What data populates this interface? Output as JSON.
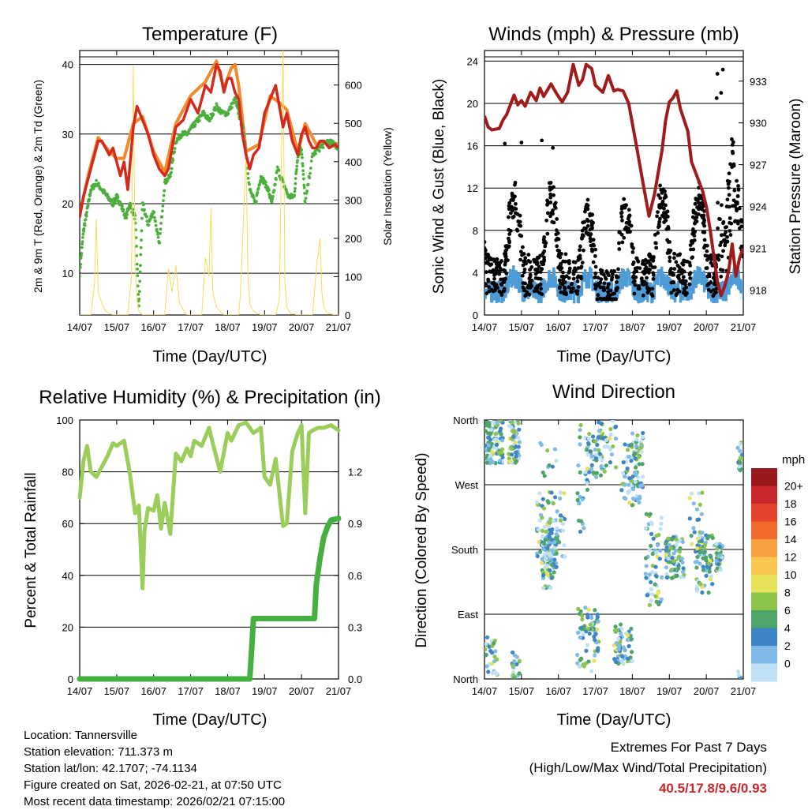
{
  "colors": {
    "temp_red": "#d42a1e",
    "temp_orange": "#f28a2a",
    "dewpoint_green": "#4caf3c",
    "solar_yellow": "#f4dc5a",
    "wind_blue": "#4f9bd6",
    "gust_black": "#000000",
    "pressure_maroon": "#a01c1c",
    "rh_green": "#9acd5a",
    "precip_green": "#44b040",
    "extremes_red": "#c8282c"
  },
  "chart_data": [
    {
      "type": "line",
      "title": "Temperature (F)",
      "xlabel": "Time (Day/UTC)",
      "ylabel_left": "2m & 9m T (Red, Orange) & 2m Td (Green)",
      "ylabel_right": "Solar Insolation (Yellow)",
      "x_ticks": [
        "14/07",
        "15/07",
        "16/07",
        "17/07",
        "18/07",
        "19/07",
        "20/07",
        "21/07"
      ],
      "xlim": [
        0,
        7
      ],
      "ylim_left": [
        4,
        42
      ],
      "yticks_left": [
        10,
        20,
        30,
        40
      ],
      "ylim_right": [
        0,
        690
      ],
      "yticks_right": [
        0,
        100,
        200,
        300,
        400,
        500,
        600
      ],
      "series": [
        {
          "name": "2m T",
          "axis": "left",
          "color": "#d42a1e",
          "x": [
            0,
            0.1,
            0.25,
            0.4,
            0.5,
            0.6,
            0.8,
            0.9,
            1.0,
            1.1,
            1.2,
            1.3,
            1.45,
            1.55,
            1.7,
            1.85,
            2.0,
            2.15,
            2.3,
            2.4,
            2.6,
            2.8,
            3.0,
            3.2,
            3.4,
            3.55,
            3.7,
            3.8,
            3.9,
            4.0,
            4.1,
            4.2,
            4.3,
            4.4,
            4.5,
            4.6,
            4.7,
            4.85,
            5.0,
            5.15,
            5.3,
            5.4,
            5.5,
            5.6,
            5.75,
            5.9,
            6.0,
            6.1,
            6.2,
            6.3,
            6.4,
            6.5,
            6.6,
            6.75,
            6.9,
            7.0
          ],
          "y": [
            18,
            21,
            24,
            27,
            29,
            29,
            27,
            28,
            26,
            24,
            26,
            22,
            31,
            34,
            32,
            30,
            27,
            25,
            24,
            25,
            31,
            32,
            35,
            33,
            37,
            36,
            40,
            39,
            36,
            38,
            38,
            36,
            35,
            30,
            27,
            25,
            27,
            28,
            33,
            35,
            37,
            34,
            31,
            33,
            29,
            27,
            30,
            31,
            29,
            28,
            28,
            29,
            29,
            28,
            28.5,
            28
          ]
        },
        {
          "name": "9m T",
          "axis": "left",
          "color": "#f28a2a",
          "x": [
            0,
            0.25,
            0.5,
            0.8,
            1.0,
            1.2,
            1.45,
            1.7,
            2.0,
            2.3,
            2.6,
            3.0,
            3.4,
            3.7,
            3.9,
            4.1,
            4.2,
            4.3,
            4.5,
            4.85,
            5.15,
            5.4,
            5.6,
            5.9,
            6.1,
            6.4,
            6.75,
            7.0
          ],
          "y": [
            18.5,
            24.5,
            29.5,
            27.5,
            26.5,
            26.5,
            31.5,
            32.5,
            27.5,
            24.5,
            31.5,
            35.5,
            37.5,
            40.5,
            36.5,
            39.5,
            40,
            37,
            27.5,
            28.5,
            35.5,
            34.5,
            33.5,
            27.5,
            31.5,
            28.5,
            29,
            28.5
          ]
        },
        {
          "name": "2m Td",
          "axis": "left",
          "color": "#4caf3c",
          "x": [
            0,
            0.1,
            0.2,
            0.3,
            0.45,
            0.6,
            0.75,
            0.9,
            1.0,
            1.1,
            1.25,
            1.35,
            1.5,
            1.6,
            1.7,
            1.85,
            2.0,
            2.15,
            2.3,
            2.45,
            2.6,
            2.75,
            2.9,
            3.05,
            3.2,
            3.35,
            3.5,
            3.7,
            3.85,
            4.0,
            4.2,
            4.3,
            4.45,
            4.6,
            4.75,
            4.9,
            5.0,
            5.1,
            5.2,
            5.35,
            5.5,
            5.65,
            5.8,
            5.9,
            6.0,
            6.1,
            6.3,
            6.5,
            6.7,
            6.9,
            7.0
          ],
          "y": [
            10,
            16,
            19,
            22,
            23,
            22,
            21,
            20,
            21,
            20,
            18,
            20,
            18,
            5,
            20,
            17,
            19,
            14,
            23,
            24,
            29,
            30,
            30,
            31,
            32,
            33,
            32,
            34,
            33,
            33,
            35,
            33,
            30,
            22,
            20,
            24,
            23,
            22,
            20,
            25,
            23,
            21,
            21,
            27,
            28,
            20,
            27,
            28,
            29,
            28.5,
            28
          ]
        },
        {
          "name": "Solar",
          "axis": "right",
          "color": "#f4dc5a",
          "x": [
            0,
            0.3,
            0.4,
            0.45,
            0.5,
            0.6,
            0.7,
            0.9,
            1.3,
            1.4,
            1.45,
            1.5,
            1.55,
            1.6,
            1.7,
            1.9,
            2.3,
            2.4,
            2.5,
            2.6,
            2.7,
            2.9,
            3.3,
            3.4,
            3.5,
            3.55,
            3.6,
            3.7,
            3.9,
            4.3,
            4.35,
            4.5,
            4.55,
            4.6,
            4.7,
            4.9,
            5.3,
            5.4,
            5.5,
            5.55,
            5.6,
            5.7,
            5.9,
            6.3,
            6.4,
            6.5,
            6.55,
            6.6,
            6.7,
            6.9,
            7.0
          ],
          "y": [
            0,
            0,
            80,
            250,
            60,
            30,
            10,
            0,
            0,
            100,
            650,
            120,
            40,
            10,
            0,
            0,
            0,
            120,
            60,
            130,
            30,
            0,
            0,
            150,
            100,
            280,
            60,
            20,
            0,
            0,
            60,
            420,
            110,
            30,
            10,
            0,
            0,
            40,
            700,
            90,
            20,
            5,
            0,
            0,
            120,
            200,
            60,
            20,
            5,
            0,
            0
          ]
        }
      ]
    },
    {
      "type": "line",
      "title": "Winds (mph) & Pressure (mb)",
      "xlabel": "Time (Day/UTC)",
      "ylabel_left": "Sonic Wind & Gust (Blue, Black)",
      "ylabel_right": "Station Pressure (Maroon)",
      "x_ticks": [
        "14/07",
        "15/07",
        "16/07",
        "17/07",
        "18/07",
        "19/07",
        "20/07",
        "21/07"
      ],
      "xlim": [
        0,
        7
      ],
      "ylim_left": [
        0,
        25
      ],
      "yticks_left": [
        0,
        4,
        8,
        12,
        16,
        20,
        24
      ],
      "ylim_right": [
        916.2,
        935.2
      ],
      "yticks_right": [
        918,
        921,
        924,
        927,
        930,
        933
      ],
      "series": [
        {
          "name": "Pressure",
          "axis": "right",
          "color": "#a01c1c",
          "x": [
            0,
            0.1,
            0.2,
            0.4,
            0.5,
            0.6,
            0.8,
            0.9,
            1.0,
            1.1,
            1.25,
            1.4,
            1.5,
            1.6,
            1.8,
            1.95,
            2.1,
            2.25,
            2.4,
            2.55,
            2.65,
            2.75,
            2.9,
            3.0,
            3.2,
            3.35,
            3.5,
            3.6,
            3.75,
            3.9,
            4.1,
            4.3,
            4.45,
            4.6,
            4.8,
            4.9,
            5.0,
            5.1,
            5.2,
            5.3,
            5.5,
            5.6,
            5.7,
            5.9,
            6.0,
            6.1,
            6.2,
            6.3,
            6.4,
            6.5,
            6.6,
            6.7,
            6.8,
            6.9,
            7.0
          ],
          "y": [
            930.5,
            929.7,
            929.5,
            929.6,
            930.2,
            930.6,
            932,
            931.3,
            931.6,
            931.2,
            932.2,
            931.6,
            932.5,
            931.9,
            932.8,
            932.1,
            931.5,
            932.2,
            934.2,
            932.7,
            933.1,
            934.2,
            933.9,
            932.7,
            932.2,
            933.4,
            932.3,
            932.4,
            932.3,
            931.4,
            928.5,
            925.5,
            923.3,
            924.9,
            928,
            930.2,
            931.5,
            931.8,
            932.3,
            931,
            929.4,
            927.2,
            926.5,
            925.1,
            924,
            922.4,
            920.5,
            918.6,
            917.6,
            918.3,
            919.3,
            921.3,
            919,
            920.3,
            921
          ]
        },
        {
          "name": "Sonic Wind",
          "axis": "left",
          "color": "#4f9bd6",
          "band": [
            0.5,
            4.5
          ]
        },
        {
          "name": "Gust",
          "axis": "left",
          "color": "#000000",
          "max": 23.2
        }
      ]
    },
    {
      "type": "line",
      "title": "Relative Humidity (%) & Precipitation (in)",
      "xlabel": "Time (Day/UTC)",
      "ylabel_left": "Percent & Total Rainfall",
      "x_ticks": [
        "14/07",
        "15/07",
        "16/07",
        "17/07",
        "18/07",
        "19/07",
        "20/07",
        "21/07"
      ],
      "xlim": [
        0,
        7
      ],
      "ylim_left": [
        0,
        100
      ],
      "yticks_left": [
        0,
        20,
        40,
        60,
        80,
        100
      ],
      "ylim_right": [
        0,
        1.5
      ],
      "yticks_right": [
        "0.0",
        "0.3",
        "0.6",
        "0.9",
        "1.2"
      ],
      "series": [
        {
          "name": "RH",
          "axis": "left",
          "color": "#9acd5a",
          "x": [
            0,
            0.1,
            0.2,
            0.3,
            0.45,
            0.6,
            0.75,
            0.9,
            1.0,
            1.2,
            1.35,
            1.5,
            1.6,
            1.7,
            1.75,
            1.85,
            2.0,
            2.1,
            2.2,
            2.3,
            2.45,
            2.6,
            2.75,
            2.9,
            3.0,
            3.1,
            3.3,
            3.5,
            3.6,
            3.8,
            4.0,
            4.1,
            4.3,
            4.5,
            4.7,
            4.9,
            5.0,
            5.15,
            5.3,
            5.5,
            5.6,
            5.75,
            5.9,
            6.0,
            6.1,
            6.2,
            6.3,
            6.45,
            6.6,
            6.8,
            7.0
          ],
          "y": [
            70,
            84,
            90,
            80,
            78,
            82,
            86,
            91,
            90,
            92,
            80,
            64,
            67,
            35,
            57,
            66,
            65,
            71,
            58,
            68,
            56,
            87,
            84,
            89,
            86,
            92,
            90,
            97,
            91,
            80,
            95,
            92,
            98,
            99,
            95,
            97,
            78,
            75,
            85,
            59,
            60,
            88,
            95,
            98,
            64,
            95,
            96,
            97,
            97,
            98,
            96
          ]
        },
        {
          "name": "Total Precipitation",
          "axis": "right",
          "color": "#44b040",
          "x": [
            0,
            4.6,
            4.66,
            4.7,
            5.0,
            6.35,
            6.4,
            6.5,
            6.6,
            6.7,
            6.8,
            7.0
          ],
          "y": [
            0,
            0,
            0.2,
            0.35,
            0.35,
            0.35,
            0.55,
            0.7,
            0.82,
            0.88,
            0.92,
            0.93
          ]
        }
      ]
    },
    {
      "type": "scatter",
      "title": "Wind Direction",
      "xlabel": "Time (Day/UTC)",
      "ylabel_left": "Direction (Colored By Speed)",
      "x_ticks": [
        "14/07",
        "15/07",
        "16/07",
        "17/07",
        "18/07",
        "19/07",
        "20/07",
        "21/07"
      ],
      "xlim": [
        0,
        7
      ],
      "ylim": [
        0,
        360
      ],
      "ytick_labels": [
        "North",
        "East",
        "South",
        "West",
        "North"
      ],
      "yticks": [
        0,
        90,
        180,
        270,
        360
      ],
      "colorbar": {
        "title": "mph",
        "labels": [
          "20+",
          "18",
          "16",
          "14",
          "12",
          "10",
          "8",
          "6",
          "4",
          "2",
          "0"
        ],
        "colors": [
          "#99181c",
          "#c8282c",
          "#e5432b",
          "#f26a2b",
          "#f6a042",
          "#f8c54e",
          "#e7e25a",
          "#8cc44c",
          "#4da56a",
          "#3d85c6",
          "#7fbbe6",
          "#bfe0f5"
        ]
      }
    }
  ],
  "info": {
    "location": "Location: Tannersville",
    "elevation": "Station elevation: 711.373 m",
    "latlon": "Station lat/lon: 42.1707; -74.1134",
    "created": "Figure created on Sat, 2026-02-21, at 07:50 UTC",
    "recent": "Most recent data timestamp: 2026/02/21 07:15:00"
  },
  "extremes": {
    "title": "Extremes For Past 7 Days",
    "subtitle": "(High/Low/Max Wind/Total Precipitation)",
    "value": "40.5/17.8/9.6/0.93"
  }
}
